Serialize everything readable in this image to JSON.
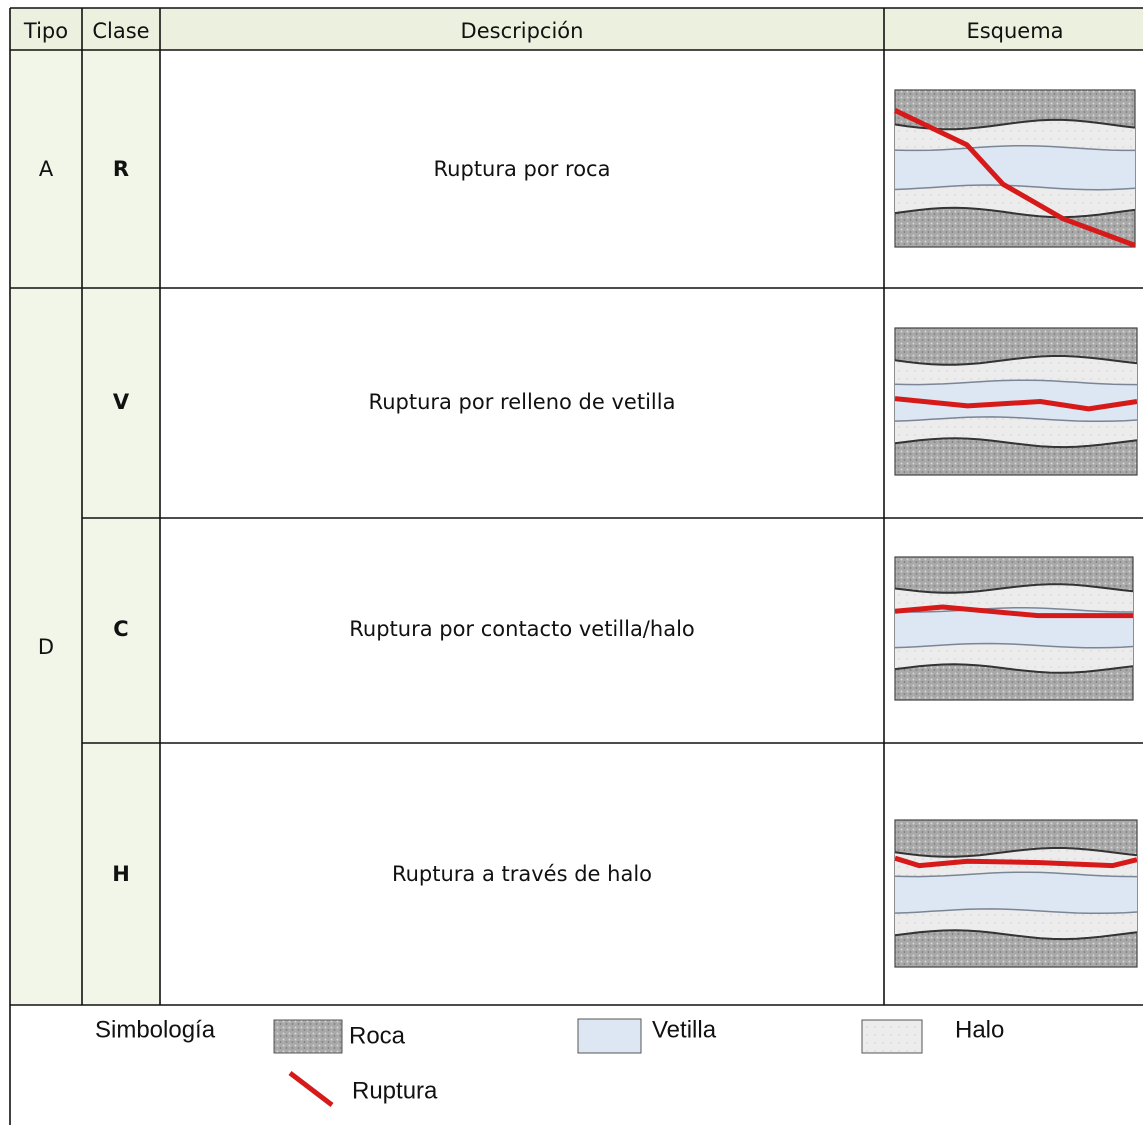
{
  "table": {
    "header": [
      "Tipo",
      "Clase",
      "Descripción",
      "Esquema"
    ],
    "groups": [
      {
        "tipo": "A",
        "rows": [
          {
            "clase": "R",
            "descripcion": "Ruptura por roca"
          }
        ]
      },
      {
        "tipo": "D",
        "rows": [
          {
            "clase": "V",
            "descripcion": "Ruptura por relleno de vetilla"
          },
          {
            "clase": "C",
            "descripcion": "Ruptura por contacto vetilla/halo"
          },
          {
            "clase": "H",
            "descripcion": "Ruptura a través de halo"
          }
        ]
      }
    ]
  },
  "legend": {
    "title": "Simbología",
    "items": [
      "Roca",
      "Vetilla",
      "Halo",
      "Ruptura"
    ]
  }
}
